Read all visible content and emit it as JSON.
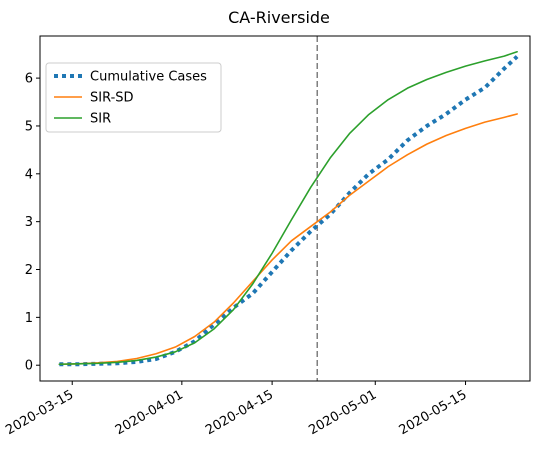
{
  "chart_data": {
    "type": "line",
    "title": "CA-Riverside",
    "xlabel": "",
    "ylabel": "",
    "x_axis_type": "date",
    "xlim": [
      "2020-03-10",
      "2020-05-25"
    ],
    "ylim": [
      -0.33,
      6.88
    ],
    "x_ticks": [
      "2020-03-15",
      "2020-04-01",
      "2020-04-15",
      "2020-05-01",
      "2020-05-15"
    ],
    "y_ticks": [
      0,
      1,
      2,
      3,
      4,
      5,
      6
    ],
    "vertical_line": {
      "x": "2020-04-22",
      "style": "dashed",
      "color": "#7f7f7f"
    },
    "grid": false,
    "legend_position": "upper-left",
    "series": [
      {
        "name": "Cumulative Cases",
        "style": "dotted",
        "color": "#1f77b4",
        "points": [
          [
            "2020-03-13",
            0.02
          ],
          [
            "2020-03-16",
            0.02
          ],
          [
            "2020-03-19",
            0.03
          ],
          [
            "2020-03-22",
            0.04
          ],
          [
            "2020-03-25",
            0.07
          ],
          [
            "2020-03-28",
            0.13
          ],
          [
            "2020-03-31",
            0.28
          ],
          [
            "2020-04-03",
            0.5
          ],
          [
            "2020-04-06",
            0.85
          ],
          [
            "2020-04-09",
            1.2
          ],
          [
            "2020-04-12",
            1.5
          ],
          [
            "2020-04-15",
            1.95
          ],
          [
            "2020-04-18",
            2.4
          ],
          [
            "2020-04-21",
            2.8
          ],
          [
            "2020-04-24",
            3.15
          ],
          [
            "2020-04-27",
            3.6
          ],
          [
            "2020-04-30",
            4.0
          ],
          [
            "2020-05-03",
            4.3
          ],
          [
            "2020-05-06",
            4.7
          ],
          [
            "2020-05-09",
            5.0
          ],
          [
            "2020-05-12",
            5.25
          ],
          [
            "2020-05-15",
            5.55
          ],
          [
            "2020-05-18",
            5.8
          ],
          [
            "2020-05-21",
            6.2
          ],
          [
            "2020-05-23",
            6.45
          ]
        ]
      },
      {
        "name": "SIR-SD",
        "style": "solid",
        "color": "#ff7f0e",
        "points": [
          [
            "2020-03-13",
            0.02
          ],
          [
            "2020-03-16",
            0.03
          ],
          [
            "2020-03-19",
            0.05
          ],
          [
            "2020-03-22",
            0.08
          ],
          [
            "2020-03-25",
            0.14
          ],
          [
            "2020-03-28",
            0.24
          ],
          [
            "2020-03-31",
            0.38
          ],
          [
            "2020-04-03",
            0.6
          ],
          [
            "2020-04-06",
            0.9
          ],
          [
            "2020-04-09",
            1.3
          ],
          [
            "2020-04-12",
            1.75
          ],
          [
            "2020-04-15",
            2.2
          ],
          [
            "2020-04-18",
            2.6
          ],
          [
            "2020-04-21",
            2.9
          ],
          [
            "2020-04-24",
            3.2
          ],
          [
            "2020-04-27",
            3.55
          ],
          [
            "2020-04-30",
            3.85
          ],
          [
            "2020-05-03",
            4.15
          ],
          [
            "2020-05-06",
            4.4
          ],
          [
            "2020-05-09",
            4.62
          ],
          [
            "2020-05-12",
            4.8
          ],
          [
            "2020-05-15",
            4.95
          ],
          [
            "2020-05-18",
            5.08
          ],
          [
            "2020-05-21",
            5.18
          ],
          [
            "2020-05-23",
            5.25
          ]
        ]
      },
      {
        "name": "SIR",
        "style": "solid",
        "color": "#2ca02c",
        "points": [
          [
            "2020-03-13",
            0.02
          ],
          [
            "2020-03-16",
            0.03
          ],
          [
            "2020-03-19",
            0.04
          ],
          [
            "2020-03-22",
            0.06
          ],
          [
            "2020-03-25",
            0.1
          ],
          [
            "2020-03-28",
            0.17
          ],
          [
            "2020-03-31",
            0.28
          ],
          [
            "2020-04-03",
            0.47
          ],
          [
            "2020-04-06",
            0.76
          ],
          [
            "2020-04-09",
            1.16
          ],
          [
            "2020-04-12",
            1.7
          ],
          [
            "2020-04-15",
            2.34
          ],
          [
            "2020-04-18",
            3.04
          ],
          [
            "2020-04-21",
            3.72
          ],
          [
            "2020-04-24",
            4.33
          ],
          [
            "2020-04-27",
            4.84
          ],
          [
            "2020-04-30",
            5.24
          ],
          [
            "2020-05-03",
            5.55
          ],
          [
            "2020-05-06",
            5.79
          ],
          [
            "2020-05-09",
            5.97
          ],
          [
            "2020-05-12",
            6.12
          ],
          [
            "2020-05-15",
            6.25
          ],
          [
            "2020-05-18",
            6.36
          ],
          [
            "2020-05-21",
            6.46
          ],
          [
            "2020-05-23",
            6.55
          ]
        ]
      }
    ]
  }
}
